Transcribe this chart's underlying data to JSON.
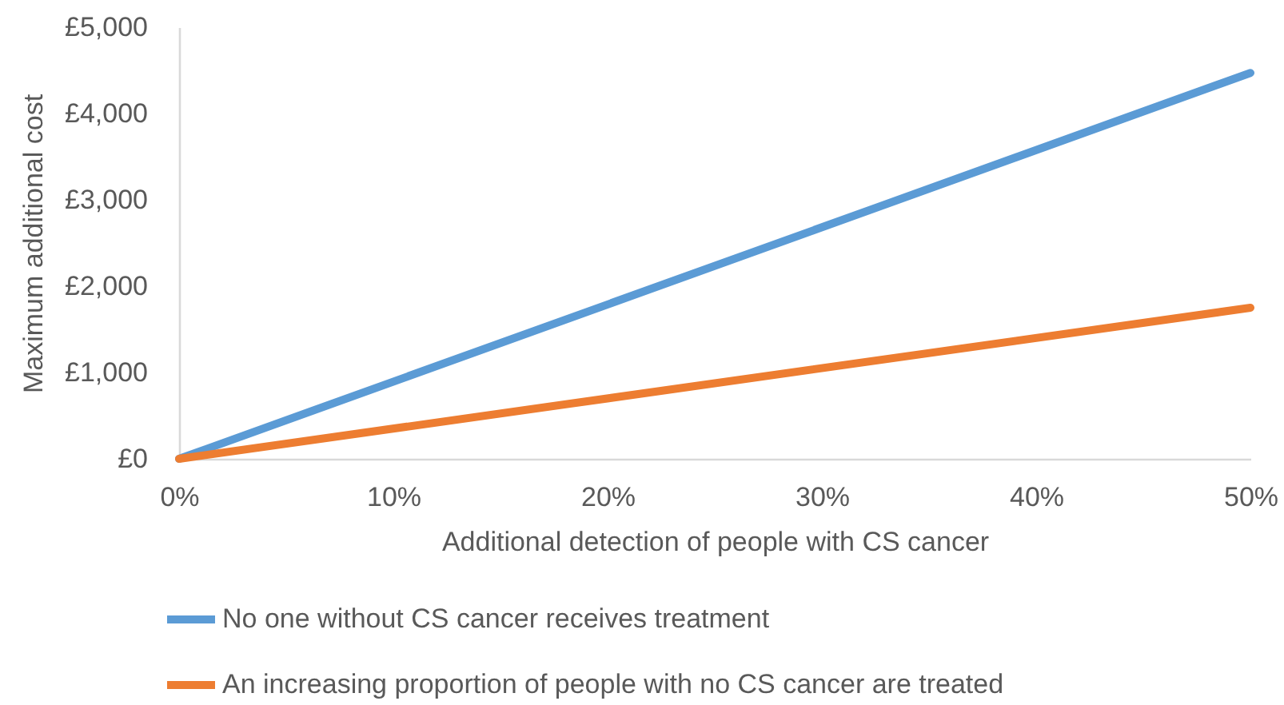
{
  "chart_data": {
    "type": "line",
    "xlabel": "Additional detection of people with CS cancer",
    "ylabel": "Maximum additional cost",
    "x": [
      0,
      50
    ],
    "series": [
      {
        "name": "No one without CS cancer receives treatment",
        "color": "#5b9bd5",
        "values": [
          0,
          4470
        ]
      },
      {
        "name": "An increasing proportion of people with no CS cancer are treated",
        "color": "#ed7d31",
        "values": [
          0,
          1750
        ]
      }
    ],
    "xlim": [
      0,
      50
    ],
    "xticks": [
      {
        "value": 0,
        "label": "0%"
      },
      {
        "value": 10,
        "label": "10%"
      },
      {
        "value": 20,
        "label": "20%"
      },
      {
        "value": 30,
        "label": "30%"
      },
      {
        "value": 40,
        "label": "40%"
      },
      {
        "value": 50,
        "label": "50%"
      }
    ],
    "ylim": [
      0,
      5000
    ],
    "yticks": [
      {
        "value": 0,
        "label": "£0"
      },
      {
        "value": 1000,
        "label": "£1,000"
      },
      {
        "value": 2000,
        "label": "£2,000"
      },
      {
        "value": 3000,
        "label": "£3,000"
      },
      {
        "value": 4000,
        "label": "£4,000"
      },
      {
        "value": 5000,
        "label": "£5,000"
      }
    ],
    "grid": false,
    "legend": "bottom",
    "line_style": "solid"
  }
}
